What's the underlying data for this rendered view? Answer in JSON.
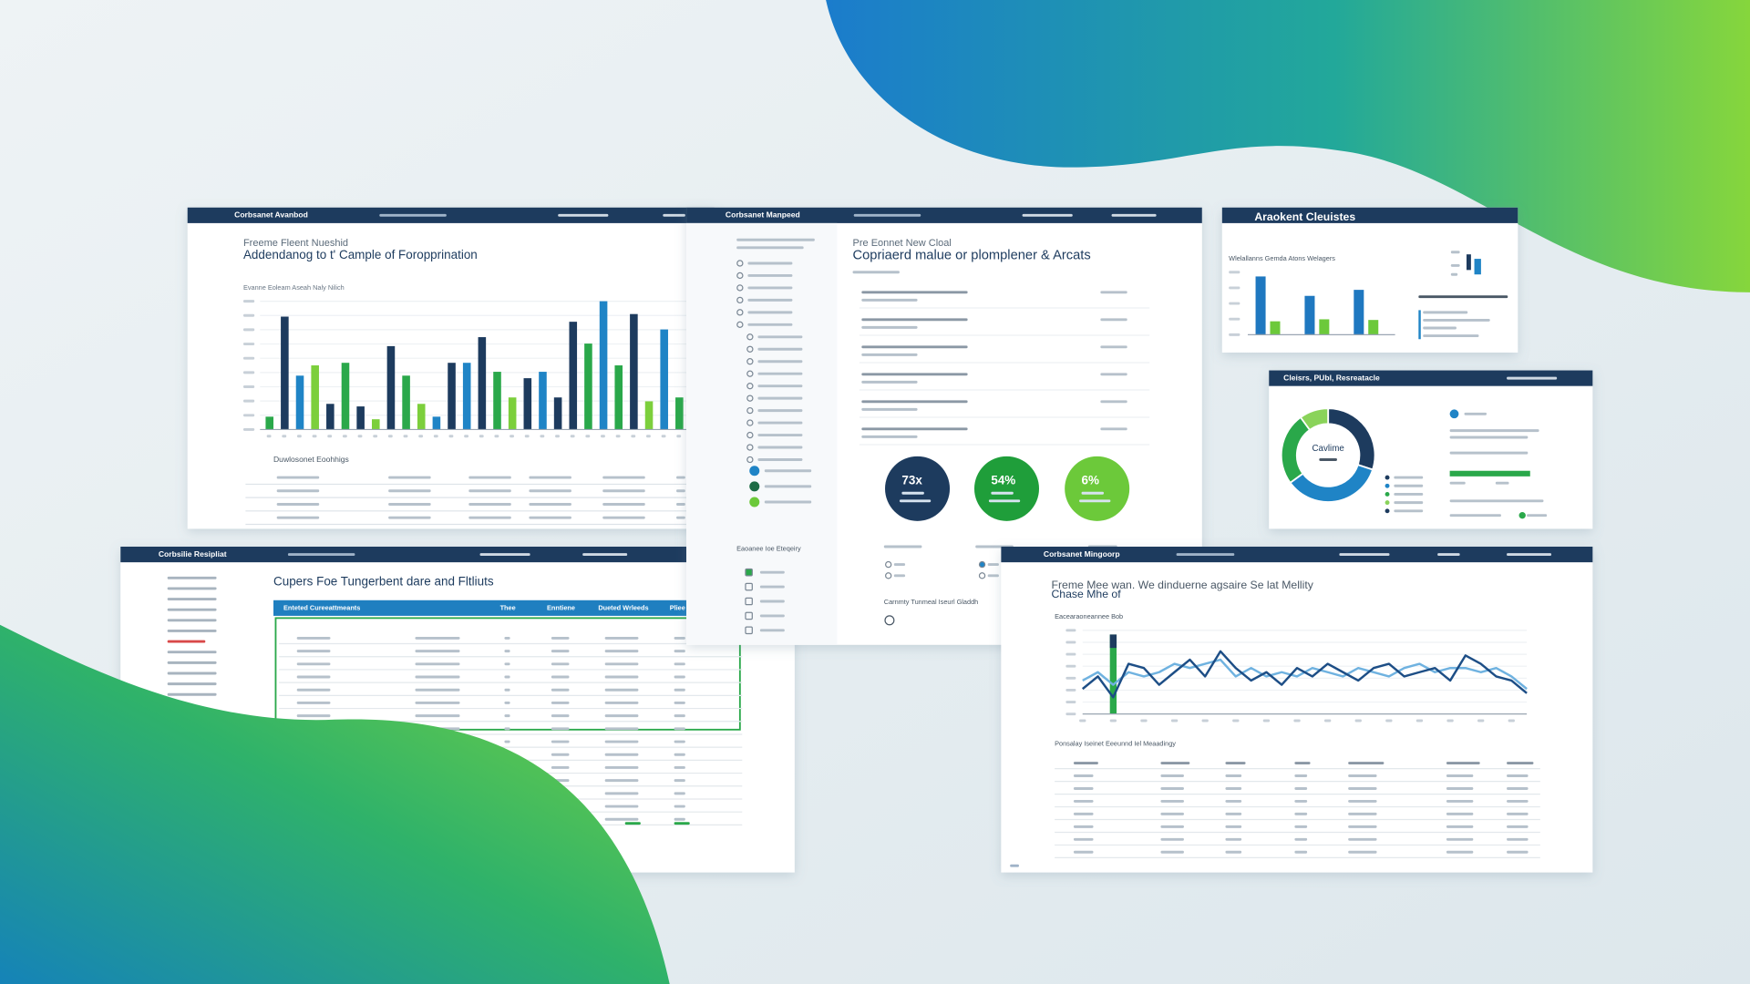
{
  "overview": {
    "header": "Corbsanet Avanbod",
    "title": "Freeme Fleent Nueshid",
    "subtitle": "Addendanog to t' Cample of Foropprination",
    "chart_title": "Evanne Eoleam Aseah Naly Nilich",
    "table_title": "Duwlosonet Eoohhigs",
    "chart": {
      "type": "bar",
      "ylim": [
        0,
        100
      ],
      "values": [
        10,
        88,
        42,
        50,
        20,
        52,
        18,
        8,
        65,
        42,
        20,
        10,
        52,
        52,
        72,
        45,
        25,
        40,
        45,
        25,
        84,
        67,
        100,
        50,
        90,
        22,
        78,
        25
      ],
      "colors": [
        "#2aa84a",
        "#1d3b5e",
        "#1f84c6",
        "#7ccf3c",
        "#1d3b5e",
        "#2aa84a",
        "#1d3b5e",
        "#7ccf3c",
        "#1d3b5e",
        "#2aa84a",
        "#7ccf3c",
        "#1f84c6",
        "#1d3b5e",
        "#1f84c6",
        "#1d3b5e",
        "#2aa84a",
        "#7ccf3c",
        "#1d3b5e",
        "#1f84c6",
        "#1d3b5e",
        "#1d3b5e",
        "#2aa84a",
        "#1f84c6",
        "#2aa84a",
        "#1d3b5e",
        "#7ccf3c",
        "#1f84c6",
        "#2aa84a"
      ]
    }
  },
  "center": {
    "header": "Corbsanet Manpeed",
    "title": "Pre Eonnet New Cloal",
    "subtitle": "Copriaerd malue or plomplener & Arcats",
    "section": "Eaoanee Ioe Eteqeiry",
    "footer": "Carnmty Tunmeal Iseurl Gladdh",
    "stats": [
      {
        "label": "73x",
        "color": "#1d3b5e"
      },
      {
        "label": "54%",
        "color": "#1f9e3a"
      },
      {
        "label": "6%",
        "color": "#6cc93a"
      }
    ]
  },
  "clusters": {
    "header": "Araokent Cleuistes",
    "chart_title": "Wlelallanns Gemda Atons Welagers",
    "chart": {
      "type": "bar",
      "ylim": [
        0,
        100
      ],
      "series": [
        {
          "color": "#1f78c0",
          "values": [
            87,
            58,
            67
          ]
        },
        {
          "color": "#6cc93a",
          "values": [
            20,
            23,
            22
          ]
        }
      ]
    }
  },
  "donut": {
    "header": "Cleisrs, PUbl, Resreatacle",
    "center_label": "Cavlime",
    "chart": {
      "type": "pie",
      "values": [
        30,
        35,
        25,
        10
      ],
      "colors": [
        "#1d3b5e",
        "#1f84c6",
        "#2aa84a",
        "#8ad35a"
      ]
    }
  },
  "table_panel": {
    "header": "Corbsilie Resipliat",
    "title": "Cupers Foe Tungerbent dare and Fltliuts",
    "columns": [
      "Enteted Cureeattmeants",
      "Thee",
      "Enntiene",
      "Dueted Wrleeds",
      "Pliee"
    ]
  },
  "trend": {
    "header": "Corbsanet Mingoorp",
    "title": "Freme Mee wan. We dinduerne agsaire Se lat Mellity",
    "title_2": "Chase Mhe of",
    "chart_title": "Eacearaoneannee Bob",
    "table_title": "Ponsalay Iseinet Eeeunnd Iel Meaadingy",
    "chart": {
      "type": "line",
      "ylim": [
        0,
        100
      ],
      "highlight_value": 95,
      "series": [
        {
          "color": "#1d4e86",
          "values": [
            30,
            45,
            20,
            60,
            55,
            35,
            50,
            65,
            45,
            75,
            55,
            40,
            50,
            35,
            55,
            45,
            60,
            50,
            40,
            55,
            60,
            45,
            50,
            55,
            40,
            70,
            60,
            45,
            40,
            25
          ]
        },
        {
          "color": "#6fb2e0",
          "values": [
            40,
            50,
            35,
            50,
            45,
            50,
            60,
            55,
            60,
            65,
            45,
            55,
            45,
            50,
            45,
            55,
            50,
            45,
            55,
            50,
            45,
            55,
            60,
            50,
            55,
            55,
            50,
            55,
            45,
            30
          ]
        }
      ]
    }
  }
}
